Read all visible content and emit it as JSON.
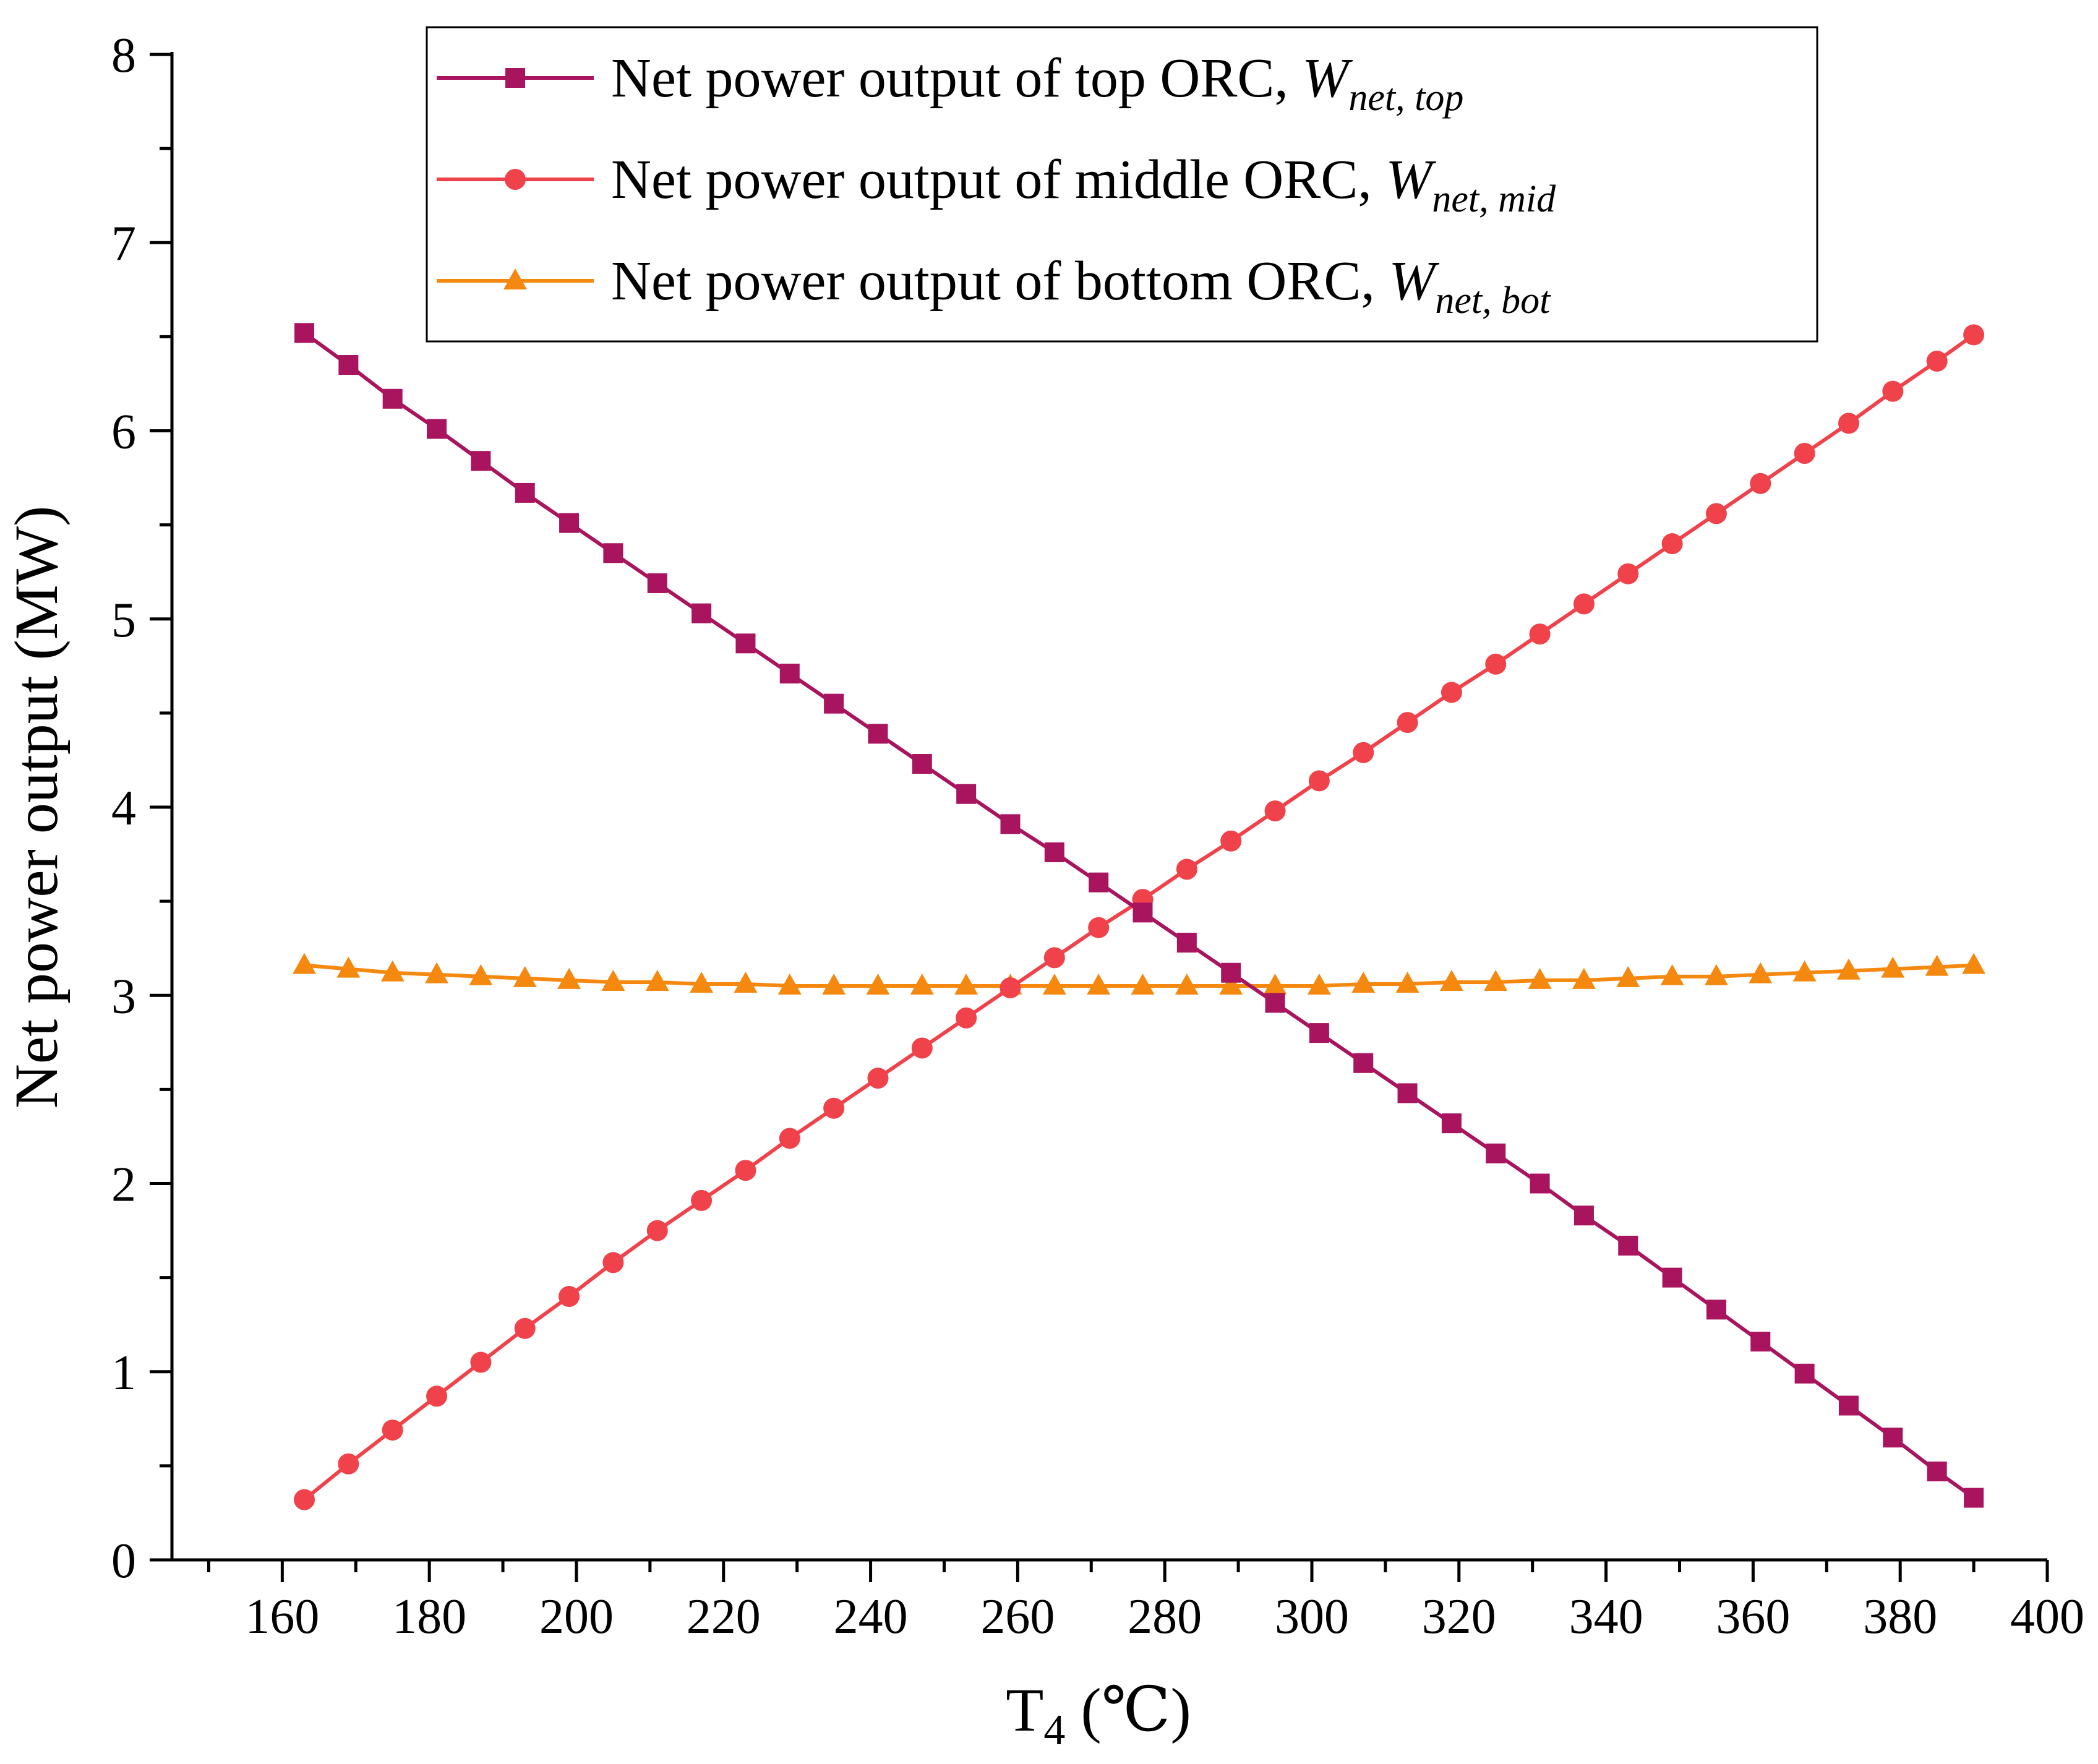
{
  "chart_data": {
    "type": "line",
    "xlabel_main": "T",
    "xlabel_sub": "4",
    "xlabel_unit": " (℃)",
    "ylabel": "Net power output (MW)",
    "xlim": [
      145,
      400
    ],
    "ylim": [
      0,
      8
    ],
    "xticks": [
      160,
      180,
      200,
      220,
      240,
      260,
      280,
      300,
      320,
      340,
      360,
      380,
      400
    ],
    "yticks": [
      0,
      1,
      2,
      3,
      4,
      5,
      6,
      7,
      8
    ],
    "x": [
      163,
      169,
      175,
      181,
      187,
      193,
      199,
      205,
      211,
      217,
      223,
      229,
      235,
      241,
      247,
      253,
      259,
      265,
      271,
      277,
      283,
      289,
      295,
      301,
      307,
      313,
      319,
      325,
      331,
      337,
      343,
      349,
      355,
      361,
      367,
      373,
      379,
      385,
      390
    ],
    "series": [
      {
        "name_main": "Net power output of top ORC, ",
        "name_symbol": "W",
        "name_sub": "net, top",
        "color": "#A8145E",
        "marker": "square",
        "values": [
          6.52,
          6.35,
          6.17,
          6.01,
          5.84,
          5.67,
          5.51,
          5.35,
          5.19,
          5.03,
          4.87,
          4.71,
          4.55,
          4.39,
          4.23,
          4.07,
          3.91,
          3.76,
          3.6,
          3.44,
          3.28,
          3.12,
          2.96,
          2.8,
          2.64,
          2.48,
          2.32,
          2.16,
          2.0,
          1.83,
          1.67,
          1.5,
          1.33,
          1.16,
          0.99,
          0.82,
          0.65,
          0.47,
          0.33
        ]
      },
      {
        "name_main": "Net power output of middle ORC, ",
        "name_symbol": "W",
        "name_sub": "net, mid",
        "color": "#F0424A",
        "marker": "circle",
        "values": [
          0.32,
          0.51,
          0.69,
          0.87,
          1.05,
          1.23,
          1.4,
          1.58,
          1.75,
          1.91,
          2.07,
          2.24,
          2.4,
          2.56,
          2.72,
          2.88,
          3.04,
          3.2,
          3.36,
          3.51,
          3.67,
          3.82,
          3.98,
          4.14,
          4.29,
          4.45,
          4.61,
          4.76,
          4.92,
          5.08,
          5.24,
          5.4,
          5.56,
          5.72,
          5.88,
          6.04,
          6.21,
          6.37,
          6.51
        ]
      },
      {
        "name_main": "Net power output of bottom ORC, ",
        "name_symbol": "W",
        "name_sub": "net, bot",
        "color": "#F5890F",
        "marker": "triangle",
        "values": [
          3.16,
          3.14,
          3.12,
          3.11,
          3.1,
          3.09,
          3.08,
          3.07,
          3.07,
          3.06,
          3.06,
          3.05,
          3.05,
          3.05,
          3.05,
          3.05,
          3.05,
          3.05,
          3.05,
          3.05,
          3.05,
          3.05,
          3.05,
          3.05,
          3.06,
          3.06,
          3.07,
          3.07,
          3.08,
          3.08,
          3.09,
          3.1,
          3.1,
          3.11,
          3.12,
          3.13,
          3.14,
          3.15,
          3.16
        ]
      }
    ],
    "legend_position": "top-center"
  }
}
